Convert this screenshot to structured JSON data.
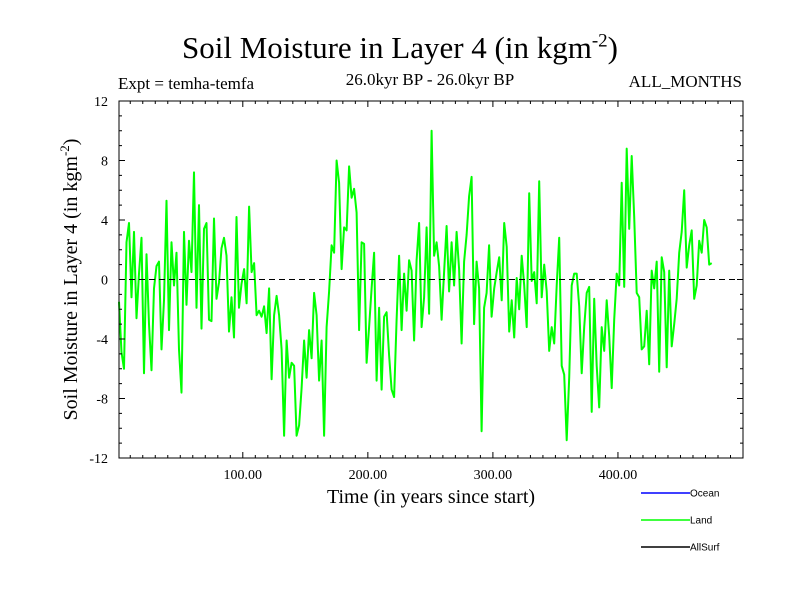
{
  "header": {
    "title_main": "Soil Moisture in Layer 4 (in kgm",
    "title_sup": "-2",
    "title_close": ")",
    "expt": "Expt = temha-temfa",
    "period": "26.0kyr BP - 26.0kyr BP",
    "months": "ALL_MONTHS"
  },
  "chart_data": {
    "type": "line",
    "title": "Soil Moisture in Layer 4 (in kgm-2)",
    "xlabel": "Time (in years since start)",
    "ylabel_main": "Soil Moisture in Layer 4 (in kgm",
    "ylabel_sup": "-2",
    "ylabel_close": ")",
    "xlim": [
      1,
      500
    ],
    "ylim": [
      -12,
      12
    ],
    "xticks": [
      100,
      200,
      300,
      400
    ],
    "xtick_labels": [
      "100.00",
      "200.00",
      "300.00",
      "400.00"
    ],
    "yticks": [
      12,
      8,
      4,
      0,
      -4,
      -8,
      -12
    ],
    "ytick_labels": [
      "12",
      "8",
      "4",
      "0",
      "-4",
      "-8",
      "-12"
    ],
    "zero_line": true,
    "legend_position": "bottom-right",
    "series": [
      {
        "name": "Ocean",
        "color": "#0000ff",
        "values": []
      },
      {
        "name": "Land",
        "color": "#00ff00",
        "x_start": 1,
        "x_step": 2,
        "values": [
          -1.5,
          -4.9,
          -6.0,
          2.5,
          3.8,
          -1.2,
          3.2,
          -2.6,
          0.4,
          2.8,
          -6.3,
          1.7,
          -3.0,
          -6.1,
          -0.6,
          0.9,
          1.2,
          -4.7,
          -1.4,
          5.3,
          -3.4,
          2.5,
          -0.4,
          1.8,
          -4.7,
          -7.6,
          3.2,
          -1.7,
          2.6,
          0.5,
          7.2,
          -1.9,
          5.0,
          -3.3,
          3.4,
          3.8,
          -2.7,
          -2.8,
          4.1,
          -1.3,
          -0.2,
          2.1,
          2.8,
          1.6,
          -3.5,
          -1.2,
          -3.9,
          4.2,
          -1.9,
          -0.3,
          0.7,
          -1.6,
          4.9,
          0.5,
          1.1,
          -2.4,
          -2.1,
          -2.5,
          -1.8,
          -3.6,
          -0.6,
          -6.7,
          -2.4,
          -1.1,
          -2.4,
          -4.7,
          -10.5,
          -4.1,
          -6.6,
          -5.6,
          -5.8,
          -10.5,
          -9.8,
          -7.3,
          -4.1,
          -6.6,
          -3.4,
          -5.3,
          -0.9,
          -2.4,
          -6.8,
          -4.1,
          -10.5,
          -3.2,
          -0.8,
          2.3,
          1.8,
          8.0,
          6.5,
          0.7,
          3.5,
          3.3,
          7.6,
          5.5,
          6.1,
          4.5,
          -3.4,
          2.5,
          2.4,
          -5.6,
          -3.2,
          -0.6,
          1.8,
          -6.8,
          -1.9,
          -7.4,
          -2.5,
          -2.2,
          -5.1,
          -7.4,
          -7.9,
          -2.7,
          1.6,
          -3.4,
          0.4,
          -2.1,
          1.3,
          0.6,
          -4.1,
          1.3,
          3.8,
          -3.2,
          -1.2,
          3.5,
          -2.3,
          10.0,
          1.6,
          2.5,
          0.9,
          -2.7,
          0.5,
          3.6,
          -0.8,
          2.5,
          -0.4,
          3.2,
          0.7,
          -4.3,
          1.2,
          3.0,
          5.6,
          6.9,
          -3.0,
          1.2,
          -0.6,
          -10.2,
          -1.9,
          -0.9,
          2.3,
          -2.5,
          -0.6,
          0.5,
          1.5,
          -1.4,
          3.8,
          2.2,
          -3.5,
          -1.4,
          -3.9,
          0.1,
          -2.0,
          1.6,
          -0.4,
          -3.2,
          5.8,
          -0.1,
          0.5,
          -1.6,
          6.6,
          -1.2,
          1.0,
          -0.8,
          -4.8,
          -3.2,
          -4.3,
          -0.4,
          2.8,
          -5.8,
          -6.4,
          -10.8,
          -6.6,
          -0.4,
          0.4,
          0.4,
          -1.8,
          -6.3,
          -3.2,
          -0.9,
          -0.5,
          -8.9,
          -1.3,
          -5.8,
          -8.6,
          -3.2,
          -4.8,
          -1.4,
          -3.8,
          -7.3,
          -2.7,
          0.4,
          -0.4,
          6.5,
          -0.5,
          8.8,
          3.4,
          8.3,
          4.2,
          -0.9,
          -1.2,
          -4.7,
          -4.5,
          -2.1,
          -5.7,
          0.6,
          -0.6,
          1.2,
          -6.2,
          1.5,
          0.5,
          -5.9,
          0.6,
          -4.5,
          -3.0,
          -1.3,
          1.8,
          3.2,
          6.0,
          0.8,
          2.3,
          3.3,
          -1.3,
          -0.4,
          2.6,
          1.8,
          4.0,
          3.5,
          1.0,
          1.1
        ]
      },
      {
        "name": "AllSurf",
        "color": "#000000",
        "values": []
      }
    ]
  }
}
